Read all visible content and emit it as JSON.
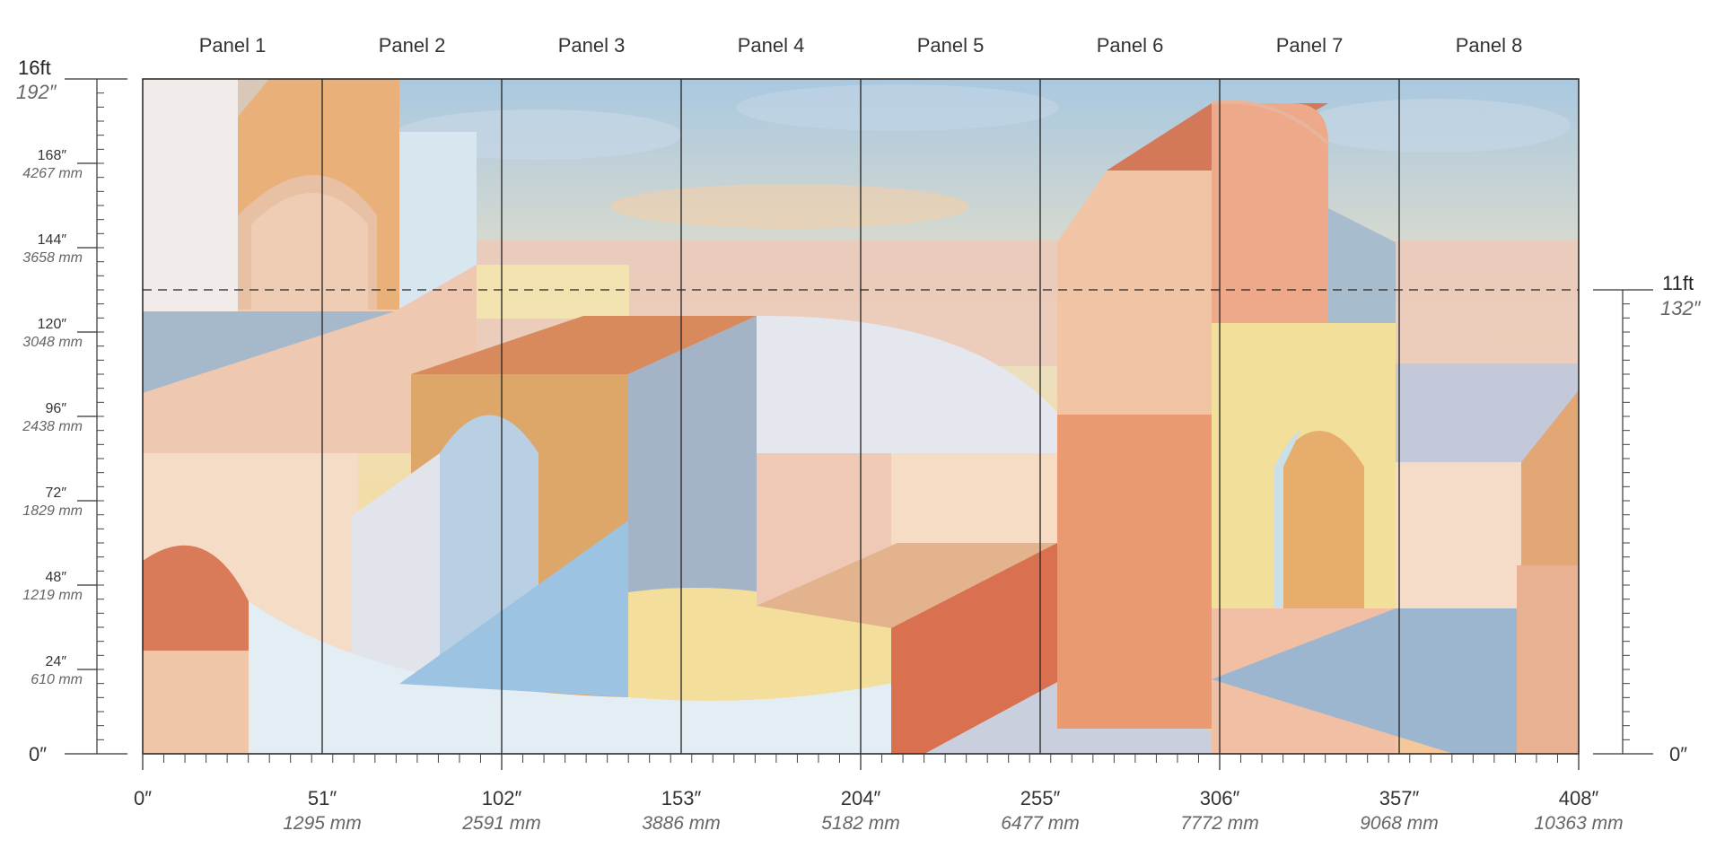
{
  "panels": [
    "Panel 1",
    "Panel 2",
    "Panel 3",
    "Panel 4",
    "Panel 5",
    "Panel 6",
    "Panel 7",
    "Panel 8"
  ],
  "left_scale": {
    "top_ft": "16ft",
    "top_in": "192″",
    "bottom": "0″",
    "ticks": [
      {
        "in": "168″",
        "mm": "4267 mm",
        "value": 168
      },
      {
        "in": "144″",
        "mm": "3658 mm",
        "value": 144
      },
      {
        "in": "120″",
        "mm": "3048 mm",
        "value": 120
      },
      {
        "in": "96″",
        "mm": "2438 mm",
        "value": 96
      },
      {
        "in": "72″",
        "mm": "1829 mm",
        "value": 72
      },
      {
        "in": "48″",
        "mm": "1219 mm",
        "value": 48
      },
      {
        "in": "24″",
        "mm": "610 mm",
        "value": 24
      }
    ]
  },
  "right_scale": {
    "top_ft": "11ft",
    "top_in": "132″",
    "bottom": "0″",
    "value": 132
  },
  "bottom_scale": [
    {
      "in": "0″",
      "mm": "",
      "value": 0
    },
    {
      "in": "51″",
      "mm": "1295 mm",
      "value": 51
    },
    {
      "in": "102″",
      "mm": "2591 mm",
      "value": 102
    },
    {
      "in": "153″",
      "mm": "3886 mm",
      "value": 153
    },
    {
      "in": "204″",
      "mm": "5182 mm",
      "value": 204
    },
    {
      "in": "255″",
      "mm": "6477 mm",
      "value": 255
    },
    {
      "in": "306″",
      "mm": "7772 mm",
      "value": 306
    },
    {
      "in": "357″",
      "mm": "9068 mm",
      "value": 357
    },
    {
      "in": "408″",
      "mm": "10363 mm",
      "value": 408
    }
  ],
  "colors": {
    "sky_blue": "#a9c8e0",
    "sky_yellow": "#f5dc9e",
    "peach": "#f2cbb0",
    "terracotta": "#d97a5a",
    "ochre": "#e2aa6a",
    "dusty_blue": "#9fb6cc",
    "light_blue": "#9cc4e2",
    "pale": "#f4ece6",
    "butter": "#f2de98",
    "lavender_grey": "#c9cfdc"
  }
}
